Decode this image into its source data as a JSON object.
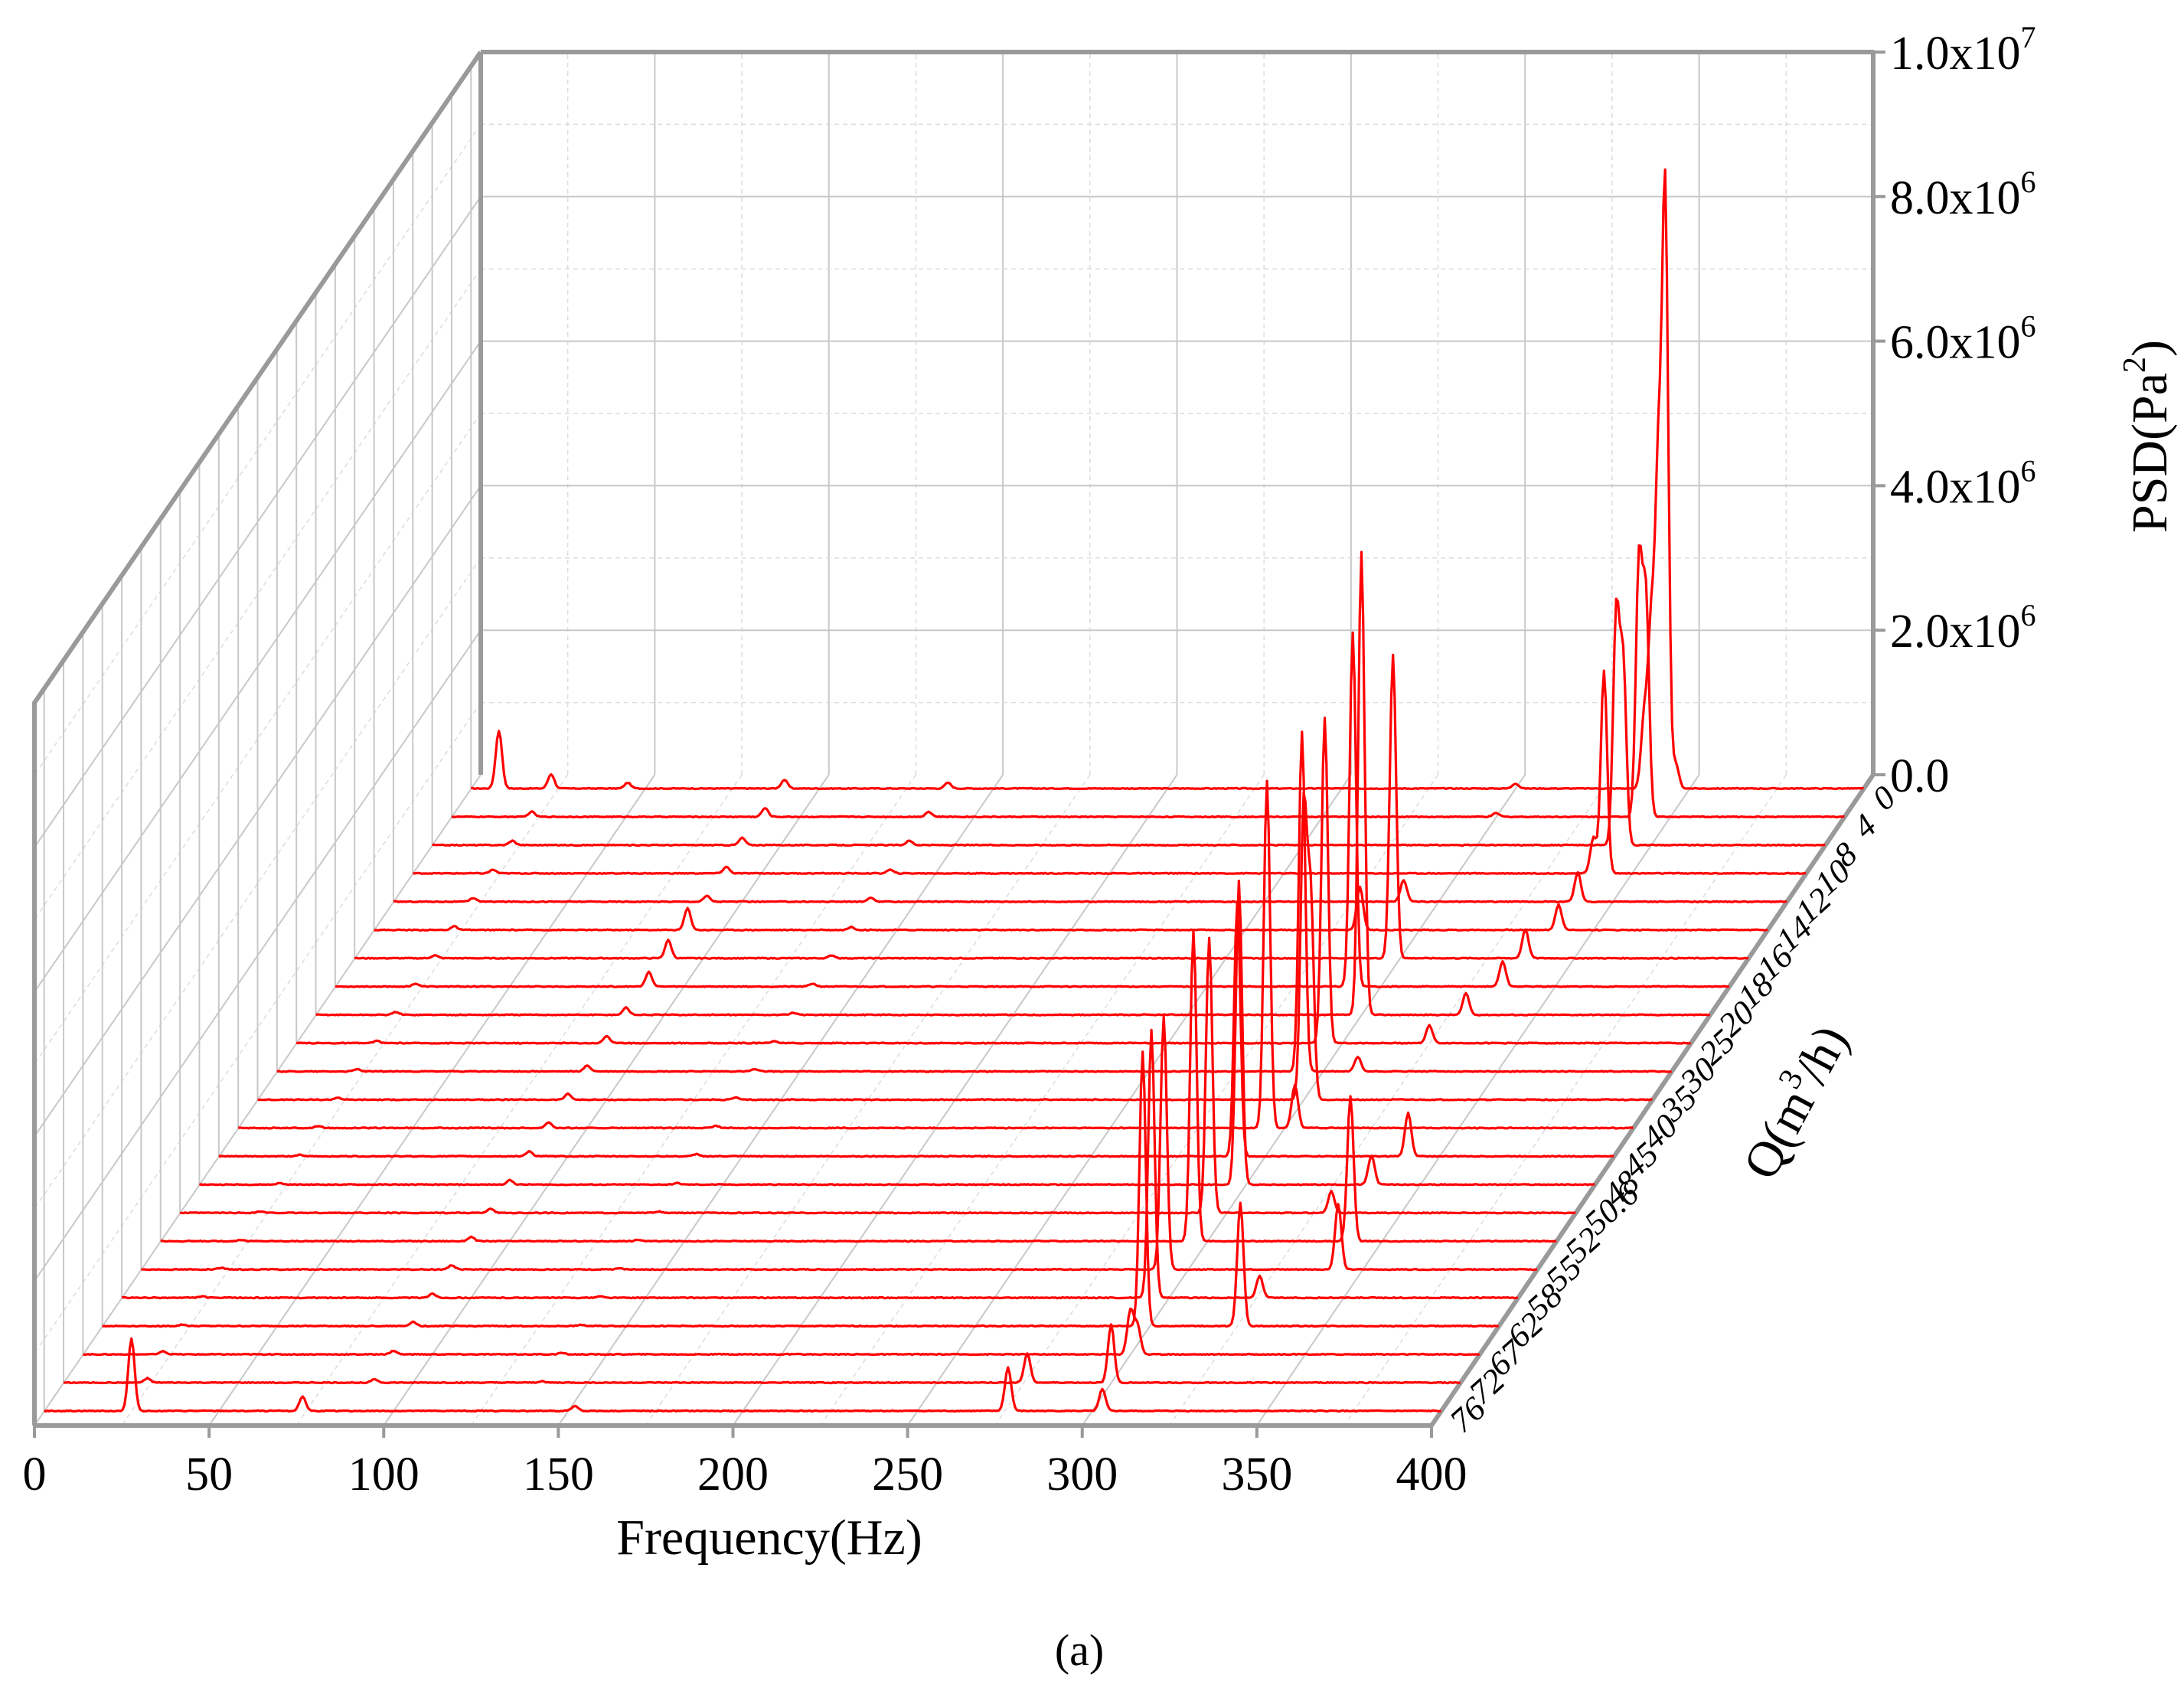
{
  "chart_data": {
    "type": "waterfall",
    "x_axis": {
      "title": "Frequency(Hz)",
      "range": [
        0,
        400
      ],
      "ticks": [
        "0",
        "50",
        "100",
        "150",
        "200",
        "250",
        "300",
        "350",
        "400"
      ]
    },
    "y_axis": {
      "title_main": "PSD(Pa",
      "title_sup": "2",
      "title_end": ")",
      "range": [
        0,
        10000000
      ],
      "ticks": [
        {
          "value": 0,
          "label": "0.0",
          "exp": ""
        },
        {
          "value": 2000000,
          "label": "2.0x10",
          "exp": "6"
        },
        {
          "value": 4000000,
          "label": "4.0x10",
          "exp": "6"
        },
        {
          "value": 6000000,
          "label": "6.0x10",
          "exp": "6"
        },
        {
          "value": 8000000,
          "label": "8.0x10",
          "exp": "6"
        },
        {
          "value": 10000000,
          "label": "1.0x10",
          "exp": "7"
        }
      ]
    },
    "z_axis": {
      "title_main": "Q(m",
      "title_sup": "3",
      "title_end": "/h)",
      "ticks": [
        "0",
        "4",
        "8",
        "10",
        "12",
        "14",
        "16",
        "18",
        "20",
        "25",
        "30",
        "35",
        "40",
        "45",
        "48",
        "50.6",
        "52",
        "55",
        "58",
        "62",
        "67",
        "72",
        "76"
      ]
    },
    "series_color": "#ff0000",
    "grid": true,
    "series": [
      {
        "name": "0",
        "peaks": [
          [
            8,
            800000
          ],
          [
            23,
            200000
          ],
          [
            45,
            80000
          ],
          [
            90,
            120000
          ],
          [
            137,
            80000
          ],
          [
            300,
            70000
          ],
          [
            337,
            1000000
          ],
          [
            339,
            2200000
          ],
          [
            341,
            4200000
          ],
          [
            343,
            8200000
          ],
          [
            346,
            350000
          ]
        ]
      },
      {
        "name": "4",
        "peaks": [
          [
            23,
            70000
          ],
          [
            90,
            120000
          ],
          [
            137,
            70000
          ],
          [
            300,
            50000
          ],
          [
            341,
            3500000
          ],
          [
            343,
            3000000
          ]
        ]
      },
      {
        "name": "8",
        "peaks": [
          [
            23,
            60000
          ],
          [
            89,
            100000
          ],
          [
            137,
            60000
          ],
          [
            340,
            3200000
          ],
          [
            342,
            2500000
          ]
        ]
      },
      {
        "name": "10",
        "peaks": [
          [
            23,
            50000
          ],
          [
            90,
            90000
          ],
          [
            137,
            50000
          ],
          [
            339,
            500000
          ],
          [
            342,
            2800000
          ]
        ]
      },
      {
        "name": "12",
        "peaks": [
          [
            23,
            50000
          ],
          [
            90,
            80000
          ],
          [
            137,
            50000
          ],
          [
            290,
            300000
          ],
          [
            340,
            400000
          ]
        ]
      },
      {
        "name": "14",
        "peaks": [
          [
            23,
            50000
          ],
          [
            90,
            300000
          ],
          [
            137,
            40000
          ],
          [
            283,
            600000
          ],
          [
            340,
            350000
          ]
        ]
      },
      {
        "name": "16",
        "peaks": [
          [
            23,
            40000
          ],
          [
            90,
            250000
          ],
          [
            137,
            40000
          ],
          [
            298,
            4200000
          ],
          [
            336,
            400000
          ]
        ]
      },
      {
        "name": "18",
        "peaks": [
          [
            23,
            40000
          ],
          [
            90,
            200000
          ],
          [
            137,
            40000
          ],
          [
            292,
            4900000
          ],
          [
            335,
            350000
          ]
        ]
      },
      {
        "name": "20",
        "peaks": [
          [
            23,
            40000
          ],
          [
            89,
            100000
          ],
          [
            137,
            30000
          ],
          [
            300,
            6400000
          ],
          [
            330,
            300000
          ]
        ]
      },
      {
        "name": "25",
        "peaks": [
          [
            23,
            30000
          ],
          [
            89,
            100000
          ],
          [
            137,
            30000
          ],
          [
            295,
            4500000
          ],
          [
            325,
            250000
          ]
        ]
      },
      {
        "name": "30",
        "peaks": [
          [
            23,
            30000
          ],
          [
            89,
            80000
          ],
          [
            137,
            30000
          ],
          [
            294,
            4700000
          ],
          [
            310,
            200000
          ]
        ]
      },
      {
        "name": "35",
        "peaks": [
          [
            23,
            30000
          ],
          [
            89,
            80000
          ],
          [
            137,
            30000
          ],
          [
            300,
            4000000
          ],
          [
            302,
            2800000
          ]
        ]
      },
      {
        "name": "40",
        "peaks": [
          [
            23,
            30000
          ],
          [
            89,
            80000
          ],
          [
            137,
            30000
          ],
          [
            295,
            4800000
          ],
          [
            303,
            600000
          ]
        ]
      },
      {
        "name": "45",
        "peaks": [
          [
            23,
            20000
          ],
          [
            89,
            70000
          ],
          [
            137,
            30000
          ],
          [
            292,
            3500000
          ],
          [
            341,
            600000
          ]
        ]
      },
      {
        "name": "48",
        "peaks": [
          [
            23,
            20000
          ],
          [
            89,
            60000
          ],
          [
            137,
            20000
          ],
          [
            298,
            4200000
          ],
          [
            336,
            400000
          ]
        ]
      },
      {
        "name": "50.6",
        "peaks": [
          [
            23,
            20000
          ],
          [
            89,
            60000
          ],
          [
            137,
            20000
          ],
          [
            295,
            3800000
          ],
          [
            330,
            300000
          ]
        ]
      },
      {
        "name": "52",
        "peaks": [
          [
            23,
            20000
          ],
          [
            89,
            60000
          ],
          [
            137,
            20000
          ],
          [
            296,
            4300000
          ],
          [
            341,
            2000000
          ]
        ]
      },
      {
        "name": "55",
        "peaks": [
          [
            23,
            20000
          ],
          [
            89,
            60000
          ],
          [
            137,
            20000
          ],
          [
            293,
            3500000
          ],
          [
            343,
            900000
          ]
        ]
      },
      {
        "name": "58",
        "peaks": [
          [
            23,
            20000
          ],
          [
            89,
            60000
          ],
          [
            137,
            20000
          ],
          [
            295,
            3700000
          ],
          [
            326,
            300000
          ]
        ]
      },
      {
        "name": "62",
        "peaks": [
          [
            23,
            20000
          ],
          [
            89,
            60000
          ],
          [
            137,
            20000
          ],
          [
            298,
            3800000
          ],
          [
            326,
            1700000
          ]
        ]
      },
      {
        "name": "67",
        "peaks": [
          [
            23,
            40000
          ],
          [
            89,
            50000
          ],
          [
            137,
            20000
          ],
          [
            300,
            600000
          ],
          [
            302,
            400000
          ]
        ]
      },
      {
        "name": "72",
        "peaks": [
          [
            24,
            60000
          ],
          [
            89,
            50000
          ],
          [
            137,
            20000
          ],
          [
            276,
            400000
          ],
          [
            300,
            800000
          ]
        ]
      },
      {
        "name": "76",
        "peaks": [
          [
            25,
            1000000
          ],
          [
            74,
            200000
          ],
          [
            152,
            70000
          ],
          [
            276,
            600000
          ],
          [
            303,
            300000
          ]
        ]
      }
    ],
    "caption": "(a)"
  }
}
